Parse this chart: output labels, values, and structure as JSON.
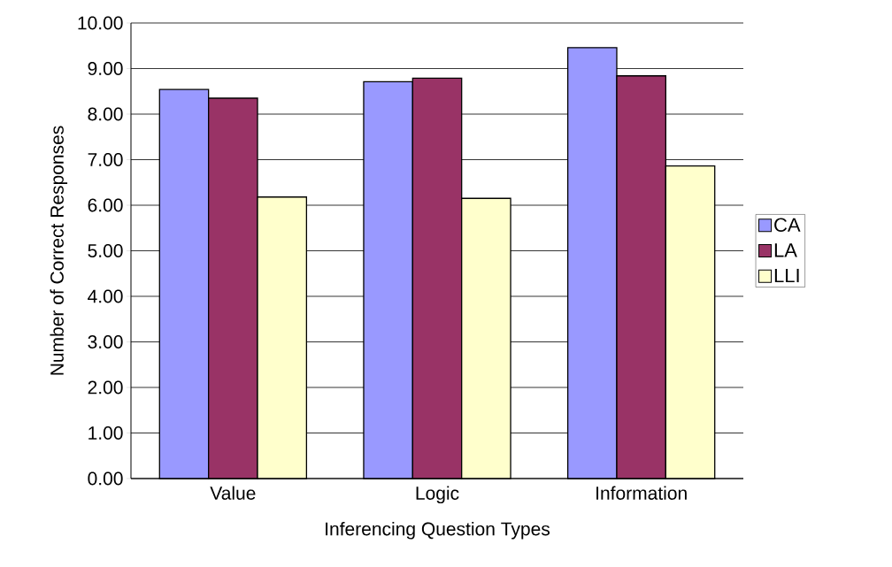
{
  "chart_data": {
    "type": "bar",
    "xlabel": "Inferencing Question Types",
    "ylabel": "Number of Correct Responses",
    "categories": [
      "Value",
      "Logic",
      "Information"
    ],
    "series": [
      {
        "name": "CA",
        "color": "#9999ff",
        "values": [
          8.54,
          8.71,
          9.46
        ]
      },
      {
        "name": "LA",
        "color": "#993366",
        "values": [
          8.35,
          8.79,
          8.84
        ]
      },
      {
        "name": "LLI",
        "color": "#ffffcc",
        "values": [
          6.18,
          6.15,
          6.86
        ]
      }
    ],
    "ylim": [
      0,
      10
    ],
    "yticks": [
      {
        "value": 0,
        "label": "0.00"
      },
      {
        "value": 1,
        "label": "1.00"
      },
      {
        "value": 2,
        "label": "2.00"
      },
      {
        "value": 3,
        "label": "3.00"
      },
      {
        "value": 4,
        "label": "4.00"
      },
      {
        "value": 5,
        "label": "5.00"
      },
      {
        "value": 6,
        "label": "6.00"
      },
      {
        "value": 7,
        "label": "7.00"
      },
      {
        "value": 8,
        "label": "8.00"
      },
      {
        "value": 9,
        "label": "9.00"
      },
      {
        "value": 10,
        "label": "10.00"
      }
    ],
    "grid": "y",
    "legend": "right"
  }
}
